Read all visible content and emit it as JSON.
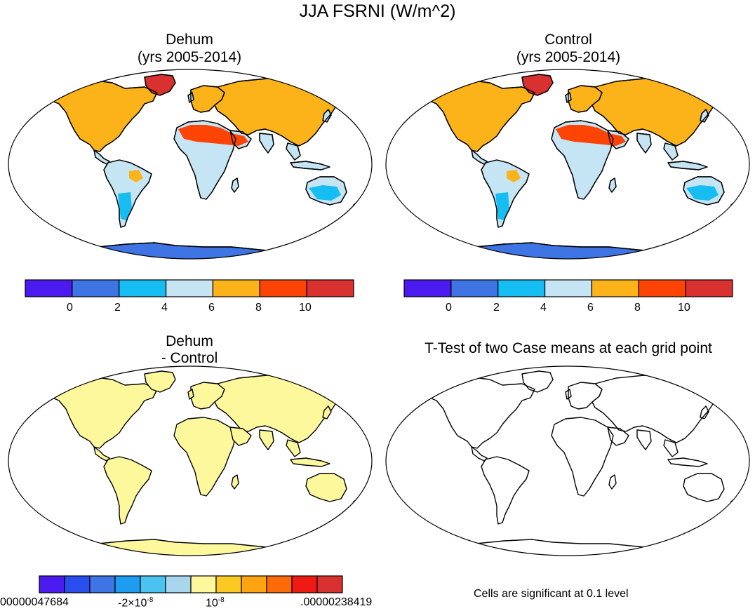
{
  "figure": {
    "title": "JJA FSRNI (W/m^2)"
  },
  "panels": {
    "dehum": {
      "title_line1": "Dehum",
      "title_line2": "(yrs 2005-2014)"
    },
    "control": {
      "title_line1": "Control",
      "title_line2": "(yrs 2005-2014)"
    },
    "diff": {
      "title_line1": "Dehum",
      "title_line2": "- Control"
    },
    "ttest": {
      "title": "T-Test of two Case means at each grid point",
      "note": "Cells are significant at 0.1 level"
    }
  },
  "colorbar_main": {
    "colors": [
      "#4b1aef",
      "#3e74e4",
      "#16bdf2",
      "#c5e4f4",
      "#fcb319",
      "#fd4405",
      "#d93030"
    ],
    "labels": [
      "0",
      "2",
      "4",
      "6",
      "8",
      "10"
    ]
  },
  "colorbar_diff": {
    "colors": [
      "#4b1aef",
      "#2a4ded",
      "#3e74e4",
      "#1c9df0",
      "#4bc3f1",
      "#a8d6ef",
      "#fef89d",
      "#fcc922",
      "#fca511",
      "#fd6a08",
      "#ef1a13",
      "#d93030"
    ],
    "labels": {
      "left": "00000047684",
      "mid_base": "-2×10",
      "mid_exp": "-8",
      "right_base": "10",
      "right_exp": "-8",
      "far_right": ".00000238419"
    }
  },
  "map_colors": {
    "ocean": "#ffffff",
    "outline": "#000000",
    "antarctica": "#3e74e4",
    "greenland": "#d93030",
    "land_default": "#c5e4f4",
    "land_warm": "#fcb319",
    "desert": "#fd4405",
    "diff_land": "#fef89d"
  }
}
